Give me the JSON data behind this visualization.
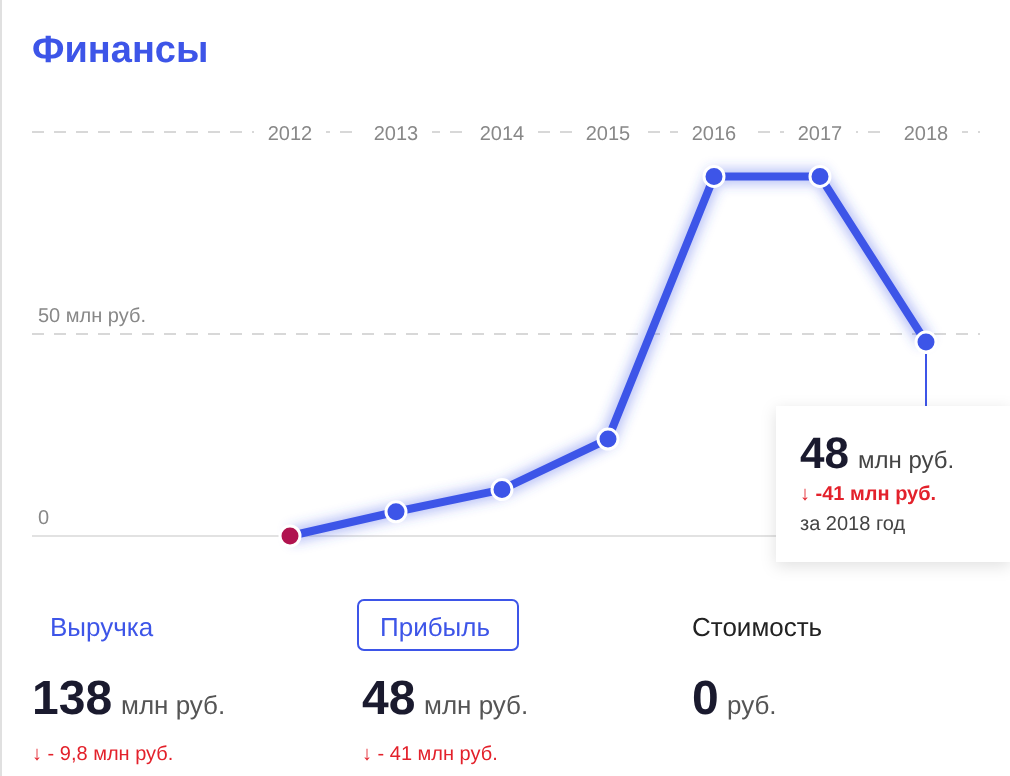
{
  "chart_data": [
    {
      "type": "line",
      "title": "Финансы",
      "categories": [
        "2012",
        "2013",
        "2014",
        "2015",
        "2016",
        "2017",
        "2018"
      ],
      "series": [
        {
          "color": "#3d55e8",
          "colors": [
            "#b0134f",
            "#3d55e8",
            "#3d55e8",
            "#3d55e8",
            "#3d55e8",
            "#3d55e8",
            "#3d55e8"
          ],
          "values": [
            0,
            6,
            11.5,
            24,
            89,
            89,
            48
          ]
        }
      ],
      "ylim": [
        0,
        100
      ],
      "yticks": [
        0,
        {
          "value": 50,
          "label": "50 млн руб."
        },
        {
          "value": 100,
          "label": null
        }
      ],
      "grid": "y",
      "marker": "circle",
      "line_style": "solid",
      "annotations": [
        {
          "text": "48",
          "x": "2018",
          "y": 48
        },
        "млн руб.",
        "↓ -41 млн руб.",
        "за 2018 год"
      ]
    },
    {
      "type": "other",
      "categories": [
        "Выручка",
        "Прибыль",
        "Стоимость"
      ],
      "values": [
        138,
        48,
        0
      ],
      "data_labels": true,
      "annotations": [
        "млн руб.",
        "млн руб.",
        "руб.",
        "↓ - 9,8 млн руб.",
        "↓ - 41 млн руб."
      ]
    }
  ]
}
